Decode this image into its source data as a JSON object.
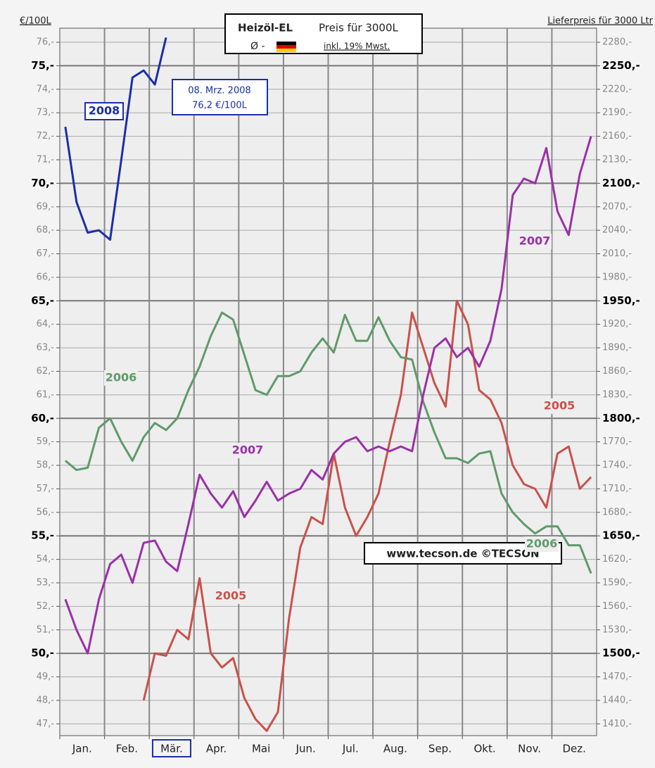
{
  "chart_data": {
    "type": "line",
    "title": "Heizöl-EL",
    "subtitle": "Preis für 3000L",
    "average_label": "Ø -",
    "tax_note": "inkl. 19% Mwst.",
    "ylabel": "€/100L",
    "y2label": "Lieferpreis für 3000 Ltr",
    "annotation": [
      "08. Mrz. 2008",
      "76,2 €/100L"
    ],
    "watermark": "www.tecson.de ©TECSON",
    "highlight_index": 8,
    "categories": [
      "Jan.",
      null,
      null,
      null,
      "Feb.",
      null,
      null,
      null,
      "Mär.",
      null,
      null,
      null,
      "Apr.",
      null,
      null,
      null,
      "Mai",
      null,
      null,
      null,
      "Jun.",
      null,
      null,
      null,
      "Jul.",
      null,
      null,
      null,
      "Aug.",
      null,
      null,
      null,
      "Sep.",
      null,
      null,
      null,
      "Okt.",
      null,
      null,
      null,
      "Nov.",
      null,
      null,
      null,
      "Dez.",
      null,
      null,
      null
    ],
    "series": [
      {
        "name": "2005",
        "color": "#c8524a",
        "values": [
          null,
          null,
          null,
          null,
          null,
          null,
          null,
          48.0,
          50.0,
          49.9,
          51.0,
          50.6,
          53.2,
          50.0,
          49.4,
          49.8,
          48.1,
          47.2,
          46.7,
          47.5,
          51.5,
          54.5,
          55.8,
          55.5,
          58.5,
          56.2,
          55.0,
          55.8,
          56.8,
          59.0,
          61.0,
          64.5,
          63.0,
          61.5,
          60.5,
          65.0,
          64.0,
          61.2,
          60.8,
          59.8,
          58.0,
          57.2,
          57.0,
          56.2,
          58.5,
          58.8,
          57.0,
          57.5
        ]
      },
      {
        "name": "2006",
        "color": "#5f9a6a",
        "values": [
          58.2,
          57.8,
          57.9,
          59.6,
          60.0,
          59.0,
          58.2,
          59.2,
          59.8,
          59.5,
          60.0,
          61.2,
          62.2,
          63.5,
          64.5,
          64.2,
          62.7,
          61.2,
          61.0,
          61.8,
          61.8,
          62.0,
          62.8,
          63.4,
          62.8,
          64.4,
          63.3,
          63.3,
          64.3,
          63.3,
          62.6,
          62.5,
          60.7,
          59.4,
          58.3,
          58.3,
          58.1,
          58.5,
          58.6,
          56.8,
          56.0,
          55.5,
          55.1,
          55.4,
          55.4,
          54.6,
          54.6,
          53.4
        ]
      },
      {
        "name": "2007",
        "color": "#9b30a8",
        "values": [
          52.3,
          51.0,
          50.0,
          52.3,
          53.8,
          54.2,
          53.0,
          54.7,
          54.8,
          53.9,
          53.5,
          55.5,
          57.6,
          56.8,
          56.2,
          56.9,
          55.8,
          56.5,
          57.3,
          56.5,
          56.8,
          57.0,
          57.8,
          57.4,
          58.5,
          59.0,
          59.2,
          58.6,
          58.8,
          58.6,
          58.8,
          58.6,
          61.0,
          63.0,
          63.4,
          62.6,
          63.0,
          62.2,
          63.3,
          65.5,
          69.5,
          70.2,
          70.0,
          71.5,
          68.8,
          67.8,
          70.4,
          72.0
        ]
      },
      {
        "name": "2008",
        "color": "#1a2fa8",
        "values": [
          72.4,
          69.2,
          67.9,
          68.0,
          67.6,
          71.0,
          74.5,
          74.8,
          74.2,
          76.2,
          null,
          null,
          null,
          null,
          null,
          null,
          null,
          null,
          null,
          null,
          null,
          null,
          null,
          null,
          null,
          null,
          null,
          null,
          null,
          null,
          null,
          null,
          null,
          null,
          null,
          null,
          null,
          null,
          null,
          null,
          null,
          null,
          null,
          null,
          null,
          null,
          null,
          null
        ]
      }
    ],
    "ylim": [
      46.5,
      76.6
    ],
    "yticks": [
      {
        "value": 47,
        "label": "47,-"
      },
      {
        "value": 48,
        "label": "48,-"
      },
      {
        "value": 49,
        "label": "49,-"
      },
      {
        "value": 50,
        "label": "50,-"
      },
      {
        "value": 51,
        "label": "51,-"
      },
      {
        "value": 52,
        "label": "52,-"
      },
      {
        "value": 53,
        "label": "53,-"
      },
      {
        "value": 54,
        "label": "54,-"
      },
      {
        "value": 55,
        "label": "55,-"
      },
      {
        "value": 56,
        "label": "56,-"
      },
      {
        "value": 57,
        "label": "57,-"
      },
      {
        "value": 58,
        "label": "58,-"
      },
      {
        "value": 59,
        "label": "59,-"
      },
      {
        "value": 60,
        "label": "60,-"
      },
      {
        "value": 61,
        "label": "61,-"
      },
      {
        "value": 62,
        "label": "62,-"
      },
      {
        "value": 63,
        "label": "63,-"
      },
      {
        "value": 64,
        "label": "64,-"
      },
      {
        "value": 65,
        "label": "65,-"
      },
      {
        "value": 66,
        "label": "66,-"
      },
      {
        "value": 67,
        "label": "67,-"
      },
      {
        "value": 68,
        "label": "68,-"
      },
      {
        "value": 69,
        "label": "69,-"
      },
      {
        "value": 70,
        "label": "70,-"
      },
      {
        "value": 71,
        "label": "71,-"
      },
      {
        "value": 72,
        "label": "72,-"
      },
      {
        "value": 73,
        "label": "73,-"
      },
      {
        "value": 74,
        "label": "74,-"
      },
      {
        "value": 75,
        "label": "75,-"
      },
      {
        "value": 76,
        "label": "76,-"
      }
    ],
    "y2lim": [
      1395,
      2298
    ],
    "y2ticks": [
      {
        "value": 1410,
        "label": "1410,-"
      },
      {
        "value": 1440,
        "label": "1440,-"
      },
      {
        "value": 1470,
        "label": "1470,-"
      },
      {
        "value": 1500,
        "label": "1500,-"
      },
      {
        "value": 1530,
        "label": "1530,-"
      },
      {
        "value": 1560,
        "label": "1560,-"
      },
      {
        "value": 1590,
        "label": "1590,-"
      },
      {
        "value": 1620,
        "label": "1620,-"
      },
      {
        "value": 1650,
        "label": "1650,-"
      },
      {
        "value": 1680,
        "label": "1680,-"
      },
      {
        "value": 1710,
        "label": "1710,-"
      },
      {
        "value": 1740,
        "label": "1740,-"
      },
      {
        "value": 1770,
        "label": "1770,-"
      },
      {
        "value": 1800,
        "label": "1800,-"
      },
      {
        "value": 1830,
        "label": "1830,-"
      },
      {
        "value": 1860,
        "label": "1860,-"
      },
      {
        "value": 1890,
        "label": "1890,-"
      },
      {
        "value": 1920,
        "label": "1920,-"
      },
      {
        "value": 1950,
        "label": "1950,-"
      },
      {
        "value": 1980,
        "label": "1980,-"
      },
      {
        "value": 2010,
        "label": "2010,-"
      },
      {
        "value": 2040,
        "label": "2040,-"
      },
      {
        "value": 2070,
        "label": "2070,-"
      },
      {
        "value": 2100,
        "label": "2100,-"
      },
      {
        "value": 2130,
        "label": "2130,-"
      },
      {
        "value": 2160,
        "label": "2160,-"
      },
      {
        "value": 2190,
        "label": "2190,-"
      },
      {
        "value": 2220,
        "label": "2220,-"
      },
      {
        "value": 2250,
        "label": "2250,-"
      },
      {
        "value": 2280,
        "label": "2280,-"
      }
    ],
    "grid": true
  }
}
